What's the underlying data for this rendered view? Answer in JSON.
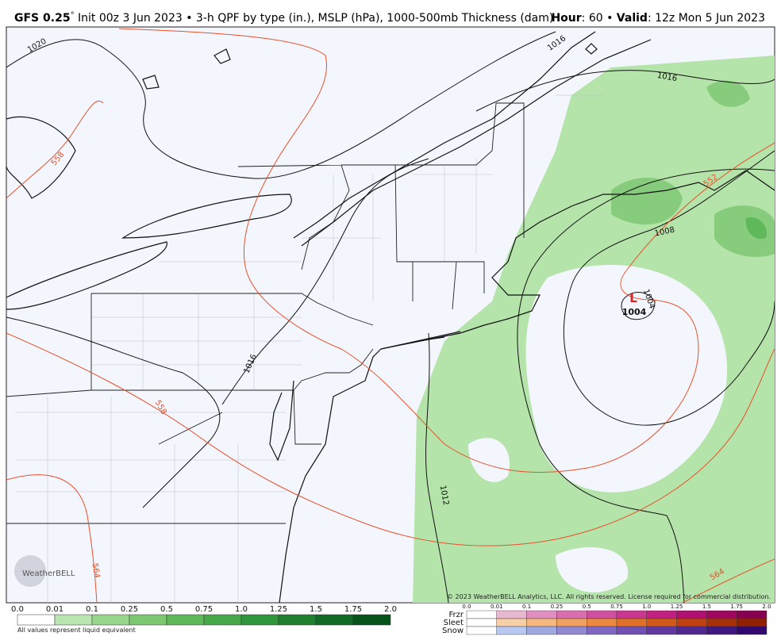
{
  "header": {
    "title_bold": "GFS 0.25",
    "title_degree": "°",
    "title_rest": " Init 00z 3 Jun 2023 • 3-h QPF by type (in.), MSLP (hPa), 1000-500mb Thickness (dam)",
    "hour_label": "Hour",
    "hour_value": ": 60 • ",
    "valid_label": "Valid",
    "valid_value": ": 12z Mon 5 Jun 2023"
  },
  "map": {
    "isobar_labels": [
      "1020",
      "1016",
      "1016",
      "1016",
      "1012",
      "1008",
      "1004"
    ],
    "thickness_labels": [
      "558",
      "558",
      "552",
      "564",
      "564"
    ],
    "low_symbol": "L",
    "low_label": "1004",
    "copyright": "© 2023 WeatherBELL Analytics, LLC. All rights reserved. License required for commercial distribution."
  },
  "logo": "WeatherBELL",
  "legend": {
    "rain_ticks": [
      "0.0",
      "0.01",
      "0.1",
      "0.25",
      "0.5",
      "0.75",
      "1.0",
      "1.25",
      "1.5",
      "1.75",
      "2.0"
    ],
    "note": "All values represent liquid equivalent",
    "ptype_labels": [
      "Frzr",
      "Sleet",
      "Snow"
    ],
    "ptype_ticks": [
      "0.0",
      "0.01",
      "0.1",
      "0.25",
      "0.5",
      "0.75",
      "1.0",
      "1.25",
      "1.5",
      "1.75",
      "2.0"
    ]
  }
}
